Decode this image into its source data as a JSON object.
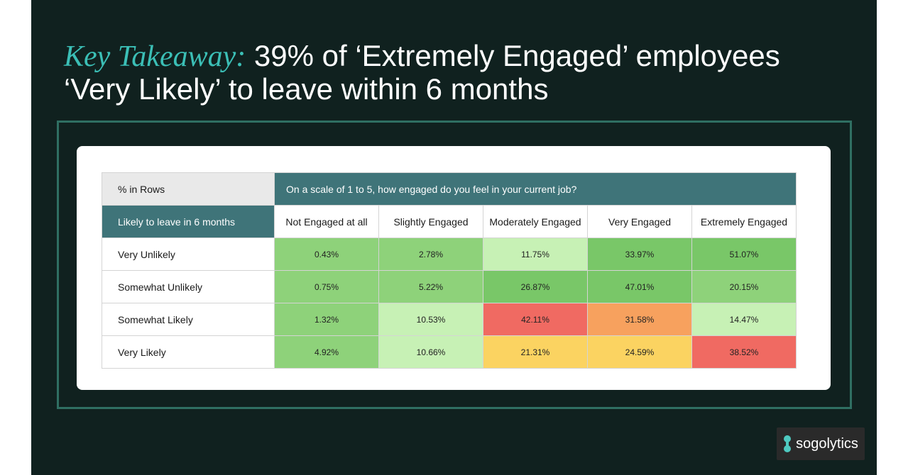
{
  "headline": {
    "key_label": "Key Takeaway:",
    "line1_rest": "39% of ‘Extremely Engaged’ employees",
    "line2": "‘Very Likely’ to leave within 6 months"
  },
  "brand": {
    "name": "sogolytics",
    "icon": "sogolytics-logo-icon"
  },
  "colors": {
    "background": "#10211f",
    "accent_teal": "#3bbfb6",
    "header_teal": "#3f7479",
    "frame": "#2f6f62"
  },
  "chart_data": {
    "type": "heatmap",
    "title": "",
    "corner_label": "% in Rows",
    "column_question": "On a scale of 1 to 5, how engaged do you feel in your current job?",
    "row_title": "Likely to leave in 6 months",
    "columns": [
      "Not Engaged at all",
      "Slightly Engaged",
      "Moderately Engaged",
      "Very Engaged",
      "Extremely Engaged"
    ],
    "rows": [
      "Very Unlikely",
      "Somewhat Unlikely",
      "Somewhat Likely",
      "Very Likely"
    ],
    "unit": "%",
    "values": [
      [
        0.43,
        2.78,
        11.75,
        33.97,
        51.07
      ],
      [
        0.75,
        5.22,
        26.87,
        47.01,
        20.15
      ],
      [
        1.32,
        10.53,
        42.11,
        31.58,
        14.47
      ],
      [
        4.92,
        10.66,
        21.31,
        24.59,
        38.52
      ]
    ],
    "labels": [
      [
        "0.43%",
        "2.78%",
        "11.75%",
        "33.97%",
        "51.07%"
      ],
      [
        "0.75%",
        "5.22%",
        "26.87%",
        "47.01%",
        "20.15%"
      ],
      [
        "1.32%",
        "10.53%",
        "42.11%",
        "31.58%",
        "14.47%"
      ],
      [
        "4.92%",
        "10.66%",
        "21.31%",
        "24.59%",
        "38.52%"
      ]
    ],
    "cell_colors": [
      [
        "#8ed27a",
        "#8ed27a",
        "#c7f1b5",
        "#79c768",
        "#79c768"
      ],
      [
        "#8ed27a",
        "#8ed27a",
        "#79c768",
        "#79c768",
        "#8ed27a"
      ],
      [
        "#8ed27a",
        "#c7f1b5",
        "#f06a62",
        "#f7a15e",
        "#c7f1b5"
      ],
      [
        "#8ed27a",
        "#c7f1b5",
        "#fbd361",
        "#fbd361",
        "#f06a62"
      ]
    ]
  }
}
